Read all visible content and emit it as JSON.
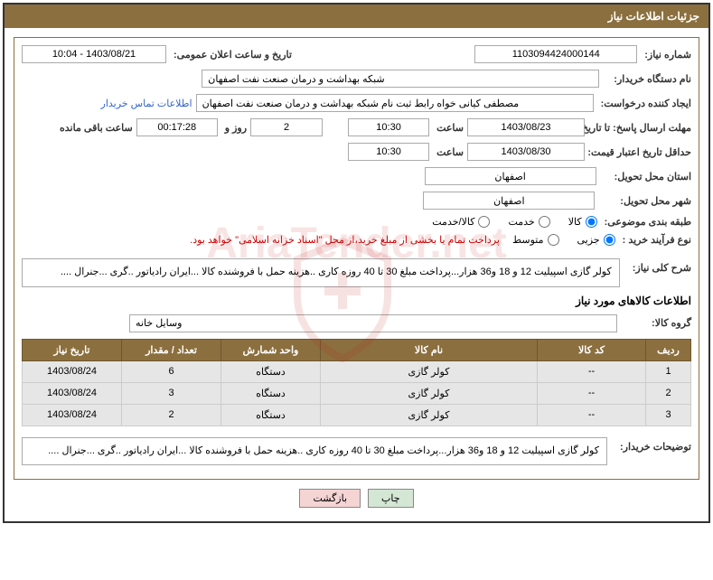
{
  "header": {
    "title": "جزئیات اطلاعات نیاز"
  },
  "fields": {
    "need_number_label": "شماره نیاز:",
    "need_number": "1103094424000144",
    "announce_datetime_label": "تاریخ و ساعت اعلان عمومی:",
    "announce_datetime": "1403/08/21 - 10:04",
    "buyer_org_label": "نام دستگاه خریدار:",
    "buyer_org": "شبکه بهداشت و درمان صنعت نفت اصفهان",
    "requester_label": "ایجاد کننده درخواست:",
    "requester": "مصطفی کیانی خواه رابط ثبت نام شبکه بهداشت و درمان صنعت نفت اصفهان",
    "buyer_contact_link": "اطلاعات تماس خریدار",
    "deadline_send_label": "مهلت ارسال پاسخ: تا تاریخ:",
    "deadline_send_date": "1403/08/23",
    "time_label": "ساعت",
    "deadline_send_time": "10:30",
    "days_remaining": "2",
    "days_and_label": "روز و",
    "countdown": "00:17:28",
    "remaining_label": "ساعت باقی مانده",
    "validity_label": "حداقل تاریخ اعتبار قیمت: تا تاریخ:",
    "validity_date": "1403/08/30",
    "validity_time": "10:30",
    "province_label": "استان محل تحویل:",
    "province": "اصفهان",
    "city_label": "شهر محل تحویل:",
    "city": "اصفهان",
    "category_label": "طبقه بندی موضوعی:",
    "cat_goods": "کالا",
    "cat_service": "خدمت",
    "cat_goods_service": "کالا/خدمت",
    "process_type_label": "نوع فرآیند خرید :",
    "proc_partial": "جزیی",
    "proc_medium": "متوسط",
    "payment_note": "پرداخت تمام یا بخشی از مبلغ خرید،از محل \"اسناد خزانه اسلامی\" خواهد بود.",
    "need_desc_label": "شرح کلی نیاز:",
    "need_desc": "کولر گازی اسپیلیت 12 و 18 و36 هزار...پرداخت مبلغ 30 تا 40  روزه کاری  ..هزینه حمل با فروشنده کالا ...ایران رادیاتور ..گری ...جنرال ....",
    "items_info_title": "اطلاعات کالاهای مورد نیاز",
    "group_label": "گروه کالا:",
    "group_value": "وسایل خانه",
    "buyer_notes_label": "توضیحات خریدار:",
    "buyer_notes": "کولر گازی اسپیلیت 12 و 18 و36 هزار...پرداخت مبلغ 30 تا 40  روزه کاری  ..هزینه حمل با فروشنده کالا ...ایران رادیاتور ..گری ...جنرال ...."
  },
  "table": {
    "headers": {
      "row": "ردیف",
      "code": "کد کالا",
      "name": "نام کالا",
      "unit": "واحد شمارش",
      "qty": "تعداد / مقدار",
      "date": "تاریخ نیاز"
    },
    "rows": [
      {
        "row": "1",
        "code": "--",
        "name": "کولر گازی",
        "unit": "دستگاه",
        "qty": "6",
        "date": "1403/08/24"
      },
      {
        "row": "2",
        "code": "--",
        "name": "کولر گازی",
        "unit": "دستگاه",
        "qty": "3",
        "date": "1403/08/24"
      },
      {
        "row": "3",
        "code": "--",
        "name": "کولر گازی",
        "unit": "دستگاه",
        "qty": "2",
        "date": "1403/08/24"
      }
    ]
  },
  "buttons": {
    "print": "چاپ",
    "back": "بازگشت"
  },
  "watermark_text": "AriaTender.net"
}
